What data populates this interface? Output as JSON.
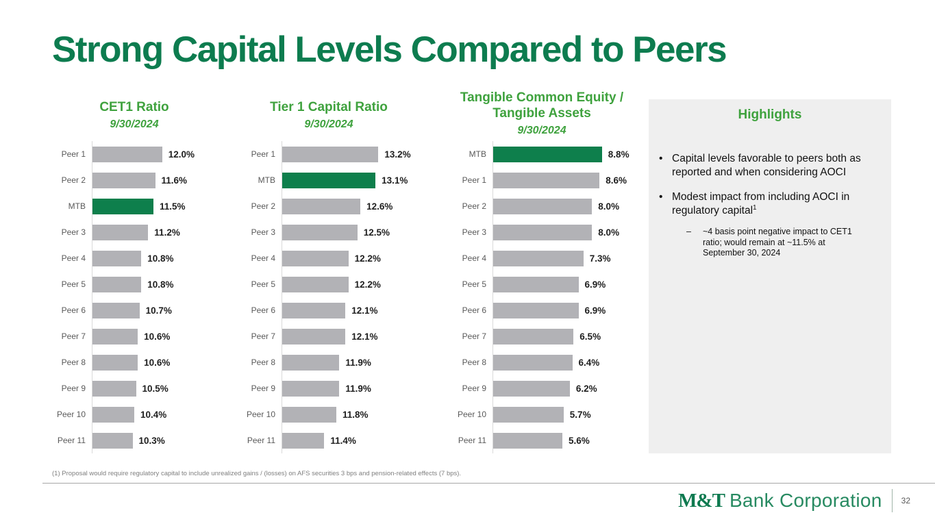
{
  "slide": {
    "title": "Strong Capital Levels Compared to Peers",
    "footnote": "(1) Proposal would require regulatory capital to include unrealized gains / (losses) on AFS securities 3 bps and pension-related effects (7 bps).",
    "page_number": "32",
    "logo": {
      "bold": "M&T",
      "rest": "Bank Corporation"
    }
  },
  "colors": {
    "title_green": "#0d7c4f",
    "header_green": "#3fa23e",
    "bar_green": "#0e7f4c",
    "bar_gray": "#b2b2b6",
    "label_gray": "#595959",
    "value_black": "#1f1f1f",
    "panel_bg": "#efefef"
  },
  "highlights": {
    "title": "Highlights",
    "bullets": [
      {
        "marker": "•",
        "text": "Capital levels favorable to peers both as reported and when considering AOCI",
        "sup": ""
      },
      {
        "marker": "•",
        "text": "Modest impact from including AOCI in regulatory capital",
        "sup": "1"
      }
    ],
    "sub_bullet": {
      "marker": "–",
      "text": "~4 basis point negative impact to CET1 ratio; would remain at ~11.5% at September 30, 2024"
    }
  },
  "chart_data": [
    {
      "type": "bar",
      "orientation": "horizontal",
      "title": "CET1 Ratio",
      "subtitle": "9/30/2024",
      "categories": [
        "Peer 1",
        "Peer 2",
        "MTB",
        "Peer 3",
        "Peer 4",
        "Peer 5",
        "Peer 6",
        "Peer 7",
        "Peer 8",
        "Peer 9",
        "Peer 10",
        "Peer 11"
      ],
      "values": [
        12.0,
        11.6,
        11.5,
        11.2,
        10.8,
        10.8,
        10.7,
        10.6,
        10.6,
        10.5,
        10.4,
        10.3
      ],
      "value_labels": [
        "12.0%",
        "11.6%",
        "11.5%",
        "11.2%",
        "10.8%",
        "10.8%",
        "10.7%",
        "10.6%",
        "10.6%",
        "10.5%",
        "10.4%",
        "10.3%"
      ],
      "highlight_category": "MTB",
      "xlim": [
        8.0,
        12.8
      ],
      "grid": false,
      "legend": false
    },
    {
      "type": "bar",
      "orientation": "horizontal",
      "title": "Tier 1 Capital Ratio",
      "subtitle": "9/30/2024",
      "categories": [
        "Peer 1",
        "MTB",
        "Peer 2",
        "Peer 3",
        "Peer 4",
        "Peer 5",
        "Peer 6",
        "Peer 7",
        "Peer 8",
        "Peer 9",
        "Peer 10",
        "Peer 11"
      ],
      "values": [
        13.2,
        13.1,
        12.6,
        12.5,
        12.2,
        12.2,
        12.1,
        12.1,
        11.9,
        11.9,
        11.8,
        11.4
      ],
      "value_labels": [
        "13.2%",
        "13.1%",
        "12.6%",
        "12.5%",
        "12.2%",
        "12.2%",
        "12.1%",
        "12.1%",
        "11.9%",
        "11.9%",
        "11.8%",
        "11.4%"
      ],
      "highlight_category": "MTB",
      "xlim": [
        10.0,
        13.6
      ],
      "grid": false,
      "legend": false
    },
    {
      "type": "bar",
      "orientation": "horizontal",
      "title": "Tangible Common Equity /\nTangible Assets",
      "subtitle": "9/30/2024",
      "categories": [
        "MTB",
        "Peer 1",
        "Peer 2",
        "Peer 3",
        "Peer 4",
        "Peer 5",
        "Peer 6",
        "Peer 7",
        "Peer 8",
        "Peer 9",
        "Peer 10",
        "Peer 11"
      ],
      "values": [
        8.8,
        8.6,
        8.0,
        8.0,
        7.3,
        6.9,
        6.9,
        6.5,
        6.4,
        6.2,
        5.7,
        5.6
      ],
      "value_labels": [
        "8.8%",
        "8.6%",
        "8.0%",
        "8.0%",
        "7.3%",
        "6.9%",
        "6.9%",
        "6.5%",
        "6.4%",
        "6.2%",
        "5.7%",
        "5.6%"
      ],
      "highlight_category": "MTB",
      "xlim": [
        0.0,
        9.2
      ],
      "grid": false,
      "legend": false
    }
  ]
}
